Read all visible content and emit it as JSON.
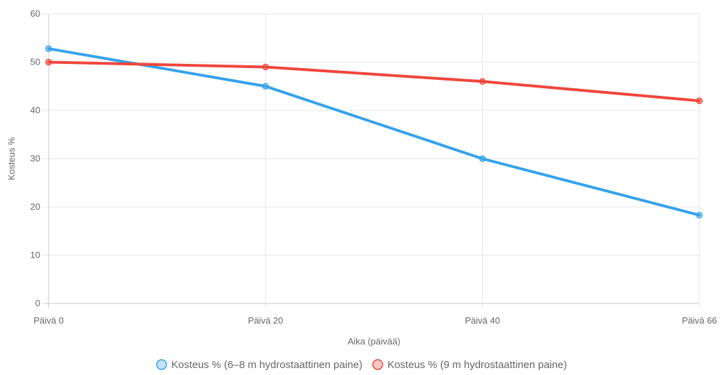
{
  "chart_data": {
    "type": "line",
    "title": "",
    "xlabel": "Aika (päivää)",
    "ylabel": "Kosteus %",
    "categories": [
      "Päivä 0",
      "Päivä 20",
      "Päivä 40",
      "Päivä 66"
    ],
    "ylim": [
      0,
      60
    ],
    "yticks": [
      0,
      10,
      20,
      30,
      40,
      50,
      60
    ],
    "grid": true,
    "legend_position": "bottom",
    "series": [
      {
        "name": "Kosteus % (6–8 m hydrostaattinen paine)",
        "values": [
          52.8,
          45,
          30,
          18.3
        ],
        "color": "#36a2eb"
      },
      {
        "name": "Kosteus % (9 m hydrostaattinen paine)",
        "values": [
          50,
          49,
          46,
          42
        ],
        "color": "#f0463c"
      }
    ]
  }
}
